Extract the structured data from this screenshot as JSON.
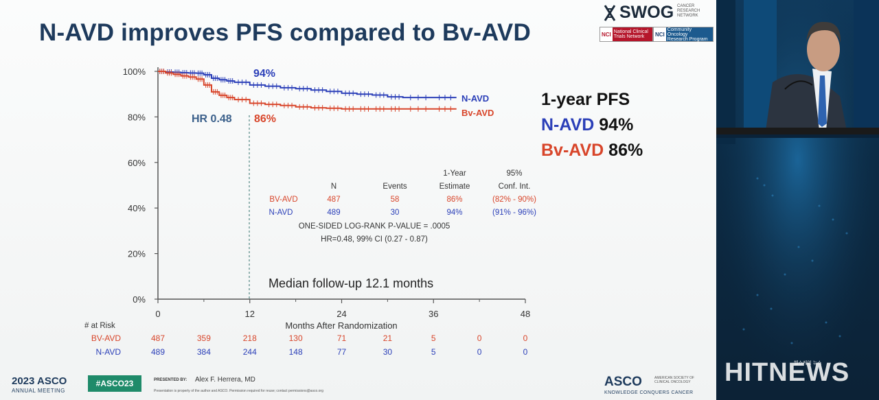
{
  "slide": {
    "title": "N-AVD improves PFS compared to Bv-AVD"
  },
  "swog": {
    "name": "SWOG",
    "tagline": [
      "CANCER",
      "RESEARCH",
      "NETWORK"
    ],
    "nci1_tag": "NCI",
    "nci1_label": [
      "National Clinical",
      "Trials Network"
    ],
    "nci2_tag": "NCI",
    "nci2_label": [
      "Community Oncology",
      "Research Program"
    ]
  },
  "chart_data": {
    "type": "line",
    "ylabel": "",
    "xlabel": "Months After Randomization",
    "xlim": [
      0,
      48
    ],
    "ylim": [
      0,
      100
    ],
    "x_ticks": [
      0,
      12,
      24,
      36,
      48
    ],
    "y_ticks": [
      "0%",
      "20%",
      "40%",
      "60%",
      "80%",
      "100%"
    ],
    "y_tick_values": [
      0,
      20,
      40,
      60,
      80,
      100
    ],
    "series": [
      {
        "name": "N-AVD",
        "color": "#2b3fb8",
        "x": [
          0,
          1,
          2,
          3,
          4,
          5,
          6,
          7,
          8,
          9,
          10,
          12,
          14,
          16,
          18,
          20,
          22,
          24,
          26,
          28,
          30,
          32,
          36,
          39
        ],
        "values": [
          100,
          99.7,
          99.6,
          99.4,
          99.3,
          99.2,
          98.5,
          97,
          96.3,
          95.8,
          95.2,
          94,
          93.5,
          92.8,
          92.4,
          91.8,
          91.2,
          90.4,
          90,
          89.6,
          88.8,
          88.5,
          88.5,
          88.5
        ]
      },
      {
        "name": "Bv-AVD",
        "color": "#d8452a",
        "x": [
          0,
          1,
          2,
          3,
          4,
          5,
          6,
          7,
          8,
          9,
          10,
          12,
          14,
          16,
          18,
          20,
          22,
          24,
          26,
          28,
          30,
          32,
          36,
          39
        ],
        "values": [
          100,
          99.3,
          98.7,
          98,
          97.5,
          96.6,
          94,
          91,
          89.5,
          88.5,
          87.6,
          86,
          85.5,
          85,
          84.4,
          84,
          83.8,
          83.5,
          83.5,
          83.5,
          83.5,
          83.5,
          83.5,
          83.5
        ]
      }
    ],
    "annotations": {
      "hr_label": "HR 0.48",
      "n_avd_pct": "94%",
      "bv_avd_pct": "86%",
      "median_follow_up": "Median follow-up 12.1 months",
      "vline_x": 12
    },
    "legend": {
      "n_avd": "N-AVD",
      "bv_avd": "Bv-AVD"
    },
    "stats_table": {
      "header_top": [
        "",
        "",
        "",
        "1-Year",
        "95%"
      ],
      "header": [
        "",
        "N",
        "Events",
        "Estimate",
        "Conf. Int."
      ],
      "rows": [
        [
          "BV-AVD",
          "487",
          "58",
          "86%",
          "(82% - 90%)"
        ],
        [
          "N-AVD",
          "489",
          "30",
          "94%",
          "(91% - 96%)"
        ]
      ],
      "pvalue": "ONE-SIDED LOG-RANK P-VALUE = .0005",
      "hr": "HR=0.48, 99% CI (0.27 - 0.87)"
    },
    "at_risk": {
      "label": "# at Risk",
      "rows": [
        {
          "name": "BV-AVD",
          "color": "#d8452a",
          "values": [
            "487",
            "359",
            "218",
            "130",
            "71",
            "21",
            "5",
            "0",
            "0"
          ]
        },
        {
          "name": "N-AVD",
          "color": "#2b3fb8",
          "values": [
            "489",
            "384",
            "244",
            "148",
            "77",
            "30",
            "5",
            "0",
            "0"
          ]
        }
      ]
    }
  },
  "pfs_summary": {
    "heading": "1-year PFS",
    "n_avd_name": "N-AVD",
    "n_avd_value": "94%",
    "bv_avd_name": "Bv-AVD",
    "bv_avd_value": "86%"
  },
  "footer": {
    "year_brand": "2023 ASCO",
    "annual_meeting": "ANNUAL MEETING",
    "hashtag": "#ASCO23",
    "presented_by": "PRESENTED BY:",
    "presenter": "Alex F. Herrera, MD",
    "disclaimer": "Presentation is property of the author and ASCO. Permission required for reuse; contact permissions@asco.org",
    "asco": "ASCO",
    "asco_org": [
      "AMERICAN SOCIETY OF",
      "CLINICAL ONCOLOGY"
    ],
    "asco_tagline": "KNOWLEDGE CONQUERS CANCER"
  },
  "watermark": {
    "brand": "HITNEWS",
    "small": "헬스케어 뉴스"
  },
  "colors": {
    "navy": "#1d3a5c",
    "n_avd": "#2b3fb8",
    "bv_avd": "#d8452a"
  }
}
